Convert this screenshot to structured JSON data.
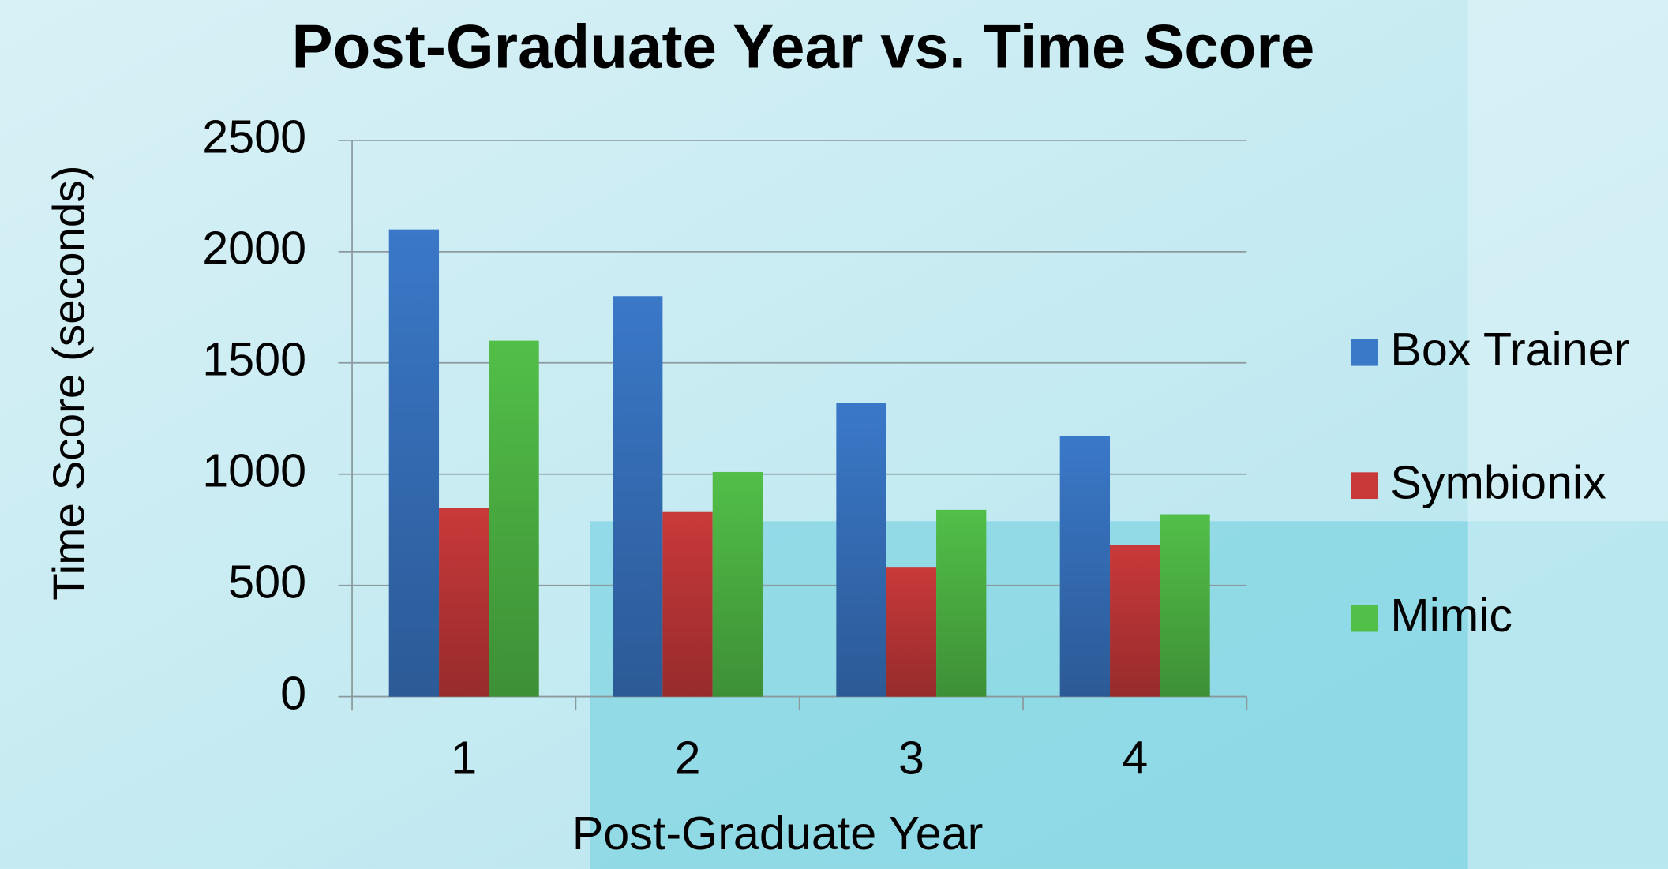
{
  "chart_data": {
    "type": "bar",
    "title": "Post-Graduate Year vs. Time Score",
    "x_label": "Post-Graduate Year",
    "y_label": "Time Score (seconds)",
    "categories": [
      "1",
      "2",
      "3",
      "4"
    ],
    "series": [
      {
        "name": "Box Trainer",
        "color": "#3a78c8",
        "values": [
          2100,
          1800,
          1320,
          1170
        ]
      },
      {
        "name": "Symbionix",
        "color": "#c9393a",
        "values": [
          850,
          830,
          580,
          680
        ]
      },
      {
        "name": "Mimic",
        "color": "#52bf48",
        "values": [
          1600,
          1010,
          840,
          820
        ]
      }
    ],
    "ylim": [
      0,
      2500
    ],
    "yticks": [
      0,
      500,
      1000,
      1500,
      2000,
      2500
    ],
    "grid": true,
    "legend": "right"
  }
}
